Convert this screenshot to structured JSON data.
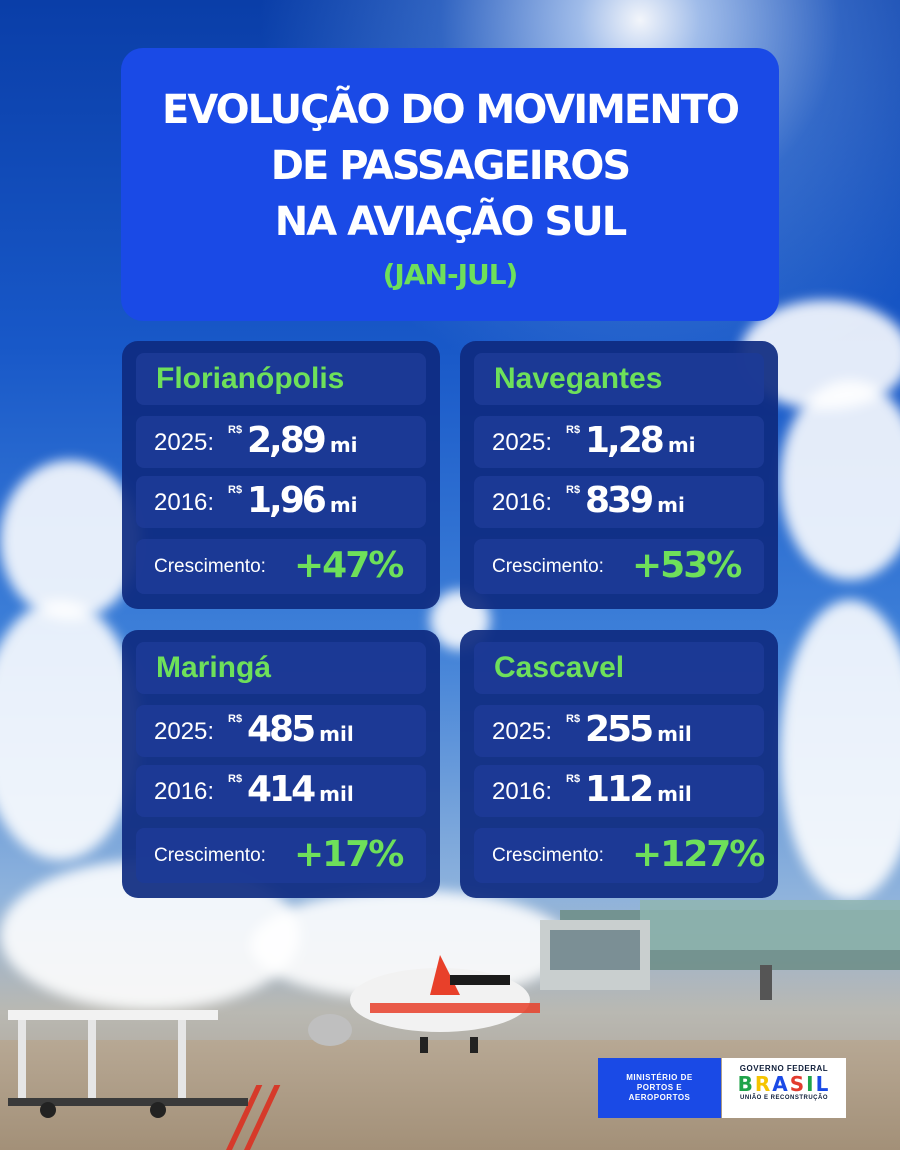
{
  "header": {
    "title_lines": [
      "EVOLUÇÃO DO MOVIMENTO",
      "DE PASSAGEIROS",
      "NA AVIAÇÃO SUL"
    ],
    "subtitle": "(JAN-JUL)"
  },
  "cards": [
    {
      "city": "Florianópolis",
      "rows": [
        {
          "year": "2025:",
          "currency": "R$",
          "value": "2,89",
          "unit": "mi"
        },
        {
          "year": "2016:",
          "currency": "R$",
          "value": "1,96",
          "unit": "mi"
        }
      ],
      "growth_label": "Crescimento:",
      "growth_value": "+47%"
    },
    {
      "city": "Navegantes",
      "rows": [
        {
          "year": "2025:",
          "currency": "R$",
          "value": "1,28",
          "unit": "mi"
        },
        {
          "year": "2016:",
          "currency": "R$",
          "value": "839",
          "unit": "mi"
        }
      ],
      "growth_label": "Crescimento:",
      "growth_value": "+53%"
    },
    {
      "city": "Maringá",
      "rows": [
        {
          "year": "2025:",
          "currency": "R$",
          "value": "485",
          "unit": "mil"
        },
        {
          "year": "2016:",
          "currency": "R$",
          "value": "414",
          "unit": "mil"
        }
      ],
      "growth_label": "Crescimento:",
      "growth_value": "+17%"
    },
    {
      "city": "Cascavel",
      "rows": [
        {
          "year": "2025:",
          "currency": "R$",
          "value": "255",
          "unit": "mil"
        },
        {
          "year": "2016:",
          "currency": "R$",
          "value": "112",
          "unit": "mil"
        }
      ],
      "growth_label": "Crescimento:",
      "growth_value": "+127%"
    }
  ],
  "footer": {
    "ministry_lines": [
      "MINISTÉRIO DE",
      "PORTOS E",
      "AEROPORTOS"
    ],
    "gov_top": "GOVERNO FEDERAL",
    "gov_brasil": "BRASIL",
    "gov_bottom": "UNIÃO E RECONSTRUÇÃO"
  },
  "colors": {
    "accent_green": "#6ee05a",
    "title_blue": "#1a4ae6",
    "card_navy": "#0e2a80",
    "brasil_letters": [
      "#1fa34a",
      "#f5c400",
      "#1a4ae6",
      "#e23b2e",
      "#1fa34a",
      "#1a4ae6"
    ]
  }
}
